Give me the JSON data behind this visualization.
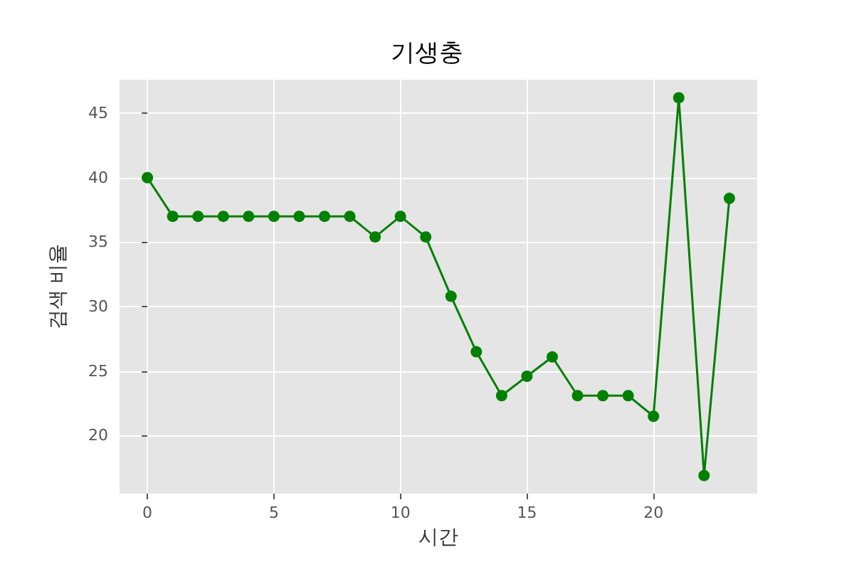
{
  "chart_data": {
    "type": "line",
    "title": "기생충",
    "xlabel": "시간",
    "ylabel": "검색 비율",
    "x": [
      0,
      1,
      2,
      3,
      4,
      5,
      6,
      7,
      8,
      9,
      10,
      11,
      12,
      13,
      14,
      15,
      16,
      17,
      18,
      19,
      20,
      21,
      22,
      23
    ],
    "series": [
      {
        "color": "#008000",
        "values": [
          40,
          37,
          37,
          37,
          37,
          37,
          37,
          37,
          37,
          35.4,
          37,
          35.4,
          30.8,
          26.5,
          23.1,
          24.6,
          26.1,
          23.1,
          23.1,
          23.1,
          21.5,
          46.2,
          16.9,
          38.4
        ]
      }
    ],
    "xlim": [
      -1.1,
      24.1
    ],
    "xticks": [
      0,
      5,
      10,
      15,
      20
    ],
    "ylim": [
      15.5,
      47.6
    ],
    "yticks": [
      20,
      25,
      30,
      35,
      40,
      45
    ],
    "grid": true,
    "marker": "circle",
    "line_style": "solid"
  }
}
